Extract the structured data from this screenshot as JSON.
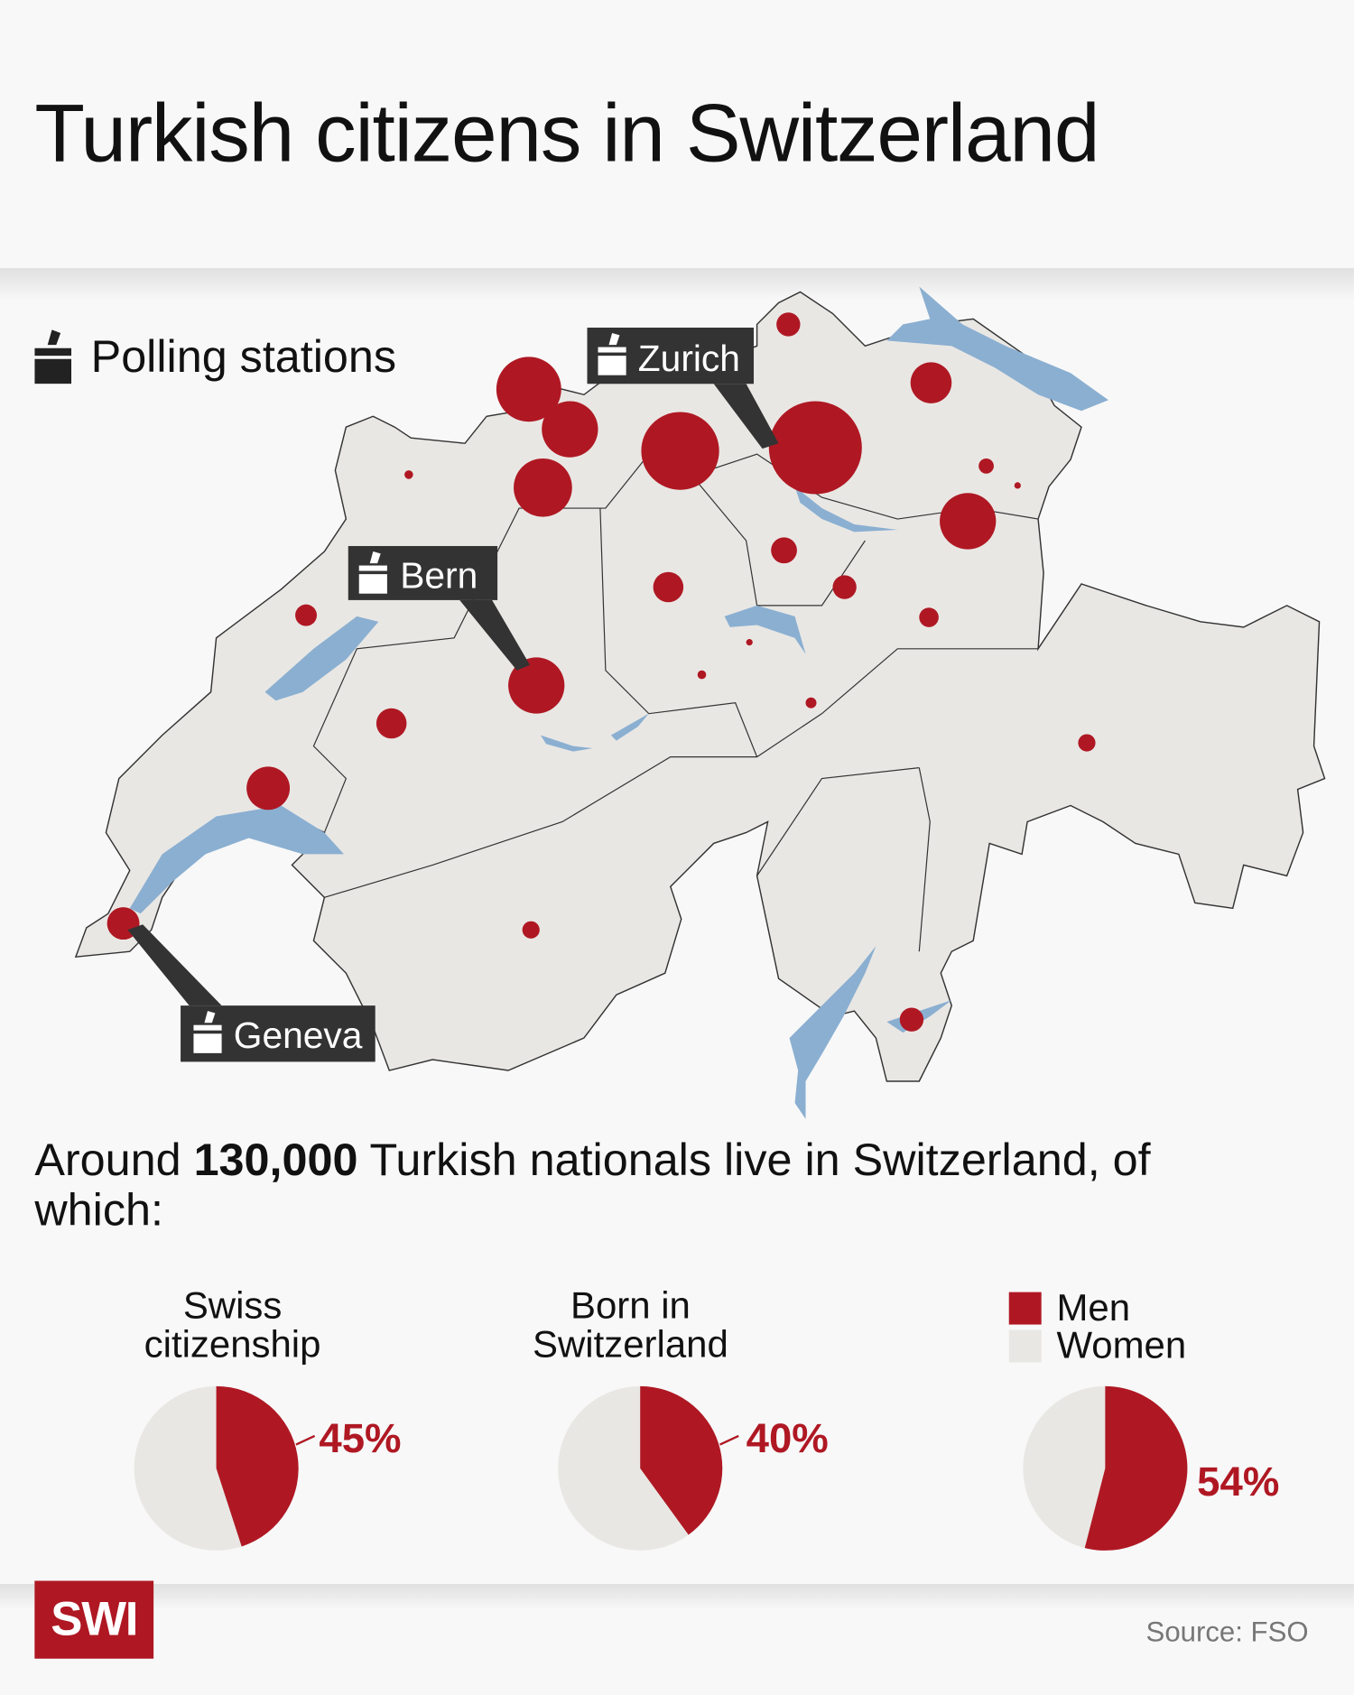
{
  "title": "Turkish citizens in Switzerland",
  "map": {
    "legend_label": "Polling stations",
    "legend_icon": "ballot-box-icon",
    "polling_stations": [
      "Zurich",
      "Bern",
      "Geneva"
    ],
    "colors": {
      "bubble": "#af1823",
      "land": "#e9e7e4",
      "lake": "#8aafd1",
      "label_box": "#333333"
    }
  },
  "intro": {
    "before": "Around ",
    "highlight": "130,000",
    "after": " Turkish nationals live in Switzerland, of which:"
  },
  "chart_data": [
    {
      "type": "pie",
      "title": "Swiss citizenship",
      "values": [
        45,
        55
      ],
      "label": "45%"
    },
    {
      "type": "pie",
      "title": "Born in Switzerland",
      "values": [
        40,
        60
      ],
      "label": "40%"
    },
    {
      "type": "pie",
      "title": "",
      "values": [
        54,
        46
      ],
      "label": "54%",
      "legend": [
        "Men",
        "Women"
      ]
    }
  ],
  "legend": {
    "men": "Men",
    "women": "Women",
    "men_color": "#af1823",
    "women_color": "#e9e7e4"
  },
  "footer": {
    "logo": "SWI",
    "source": "Source: FSO"
  }
}
